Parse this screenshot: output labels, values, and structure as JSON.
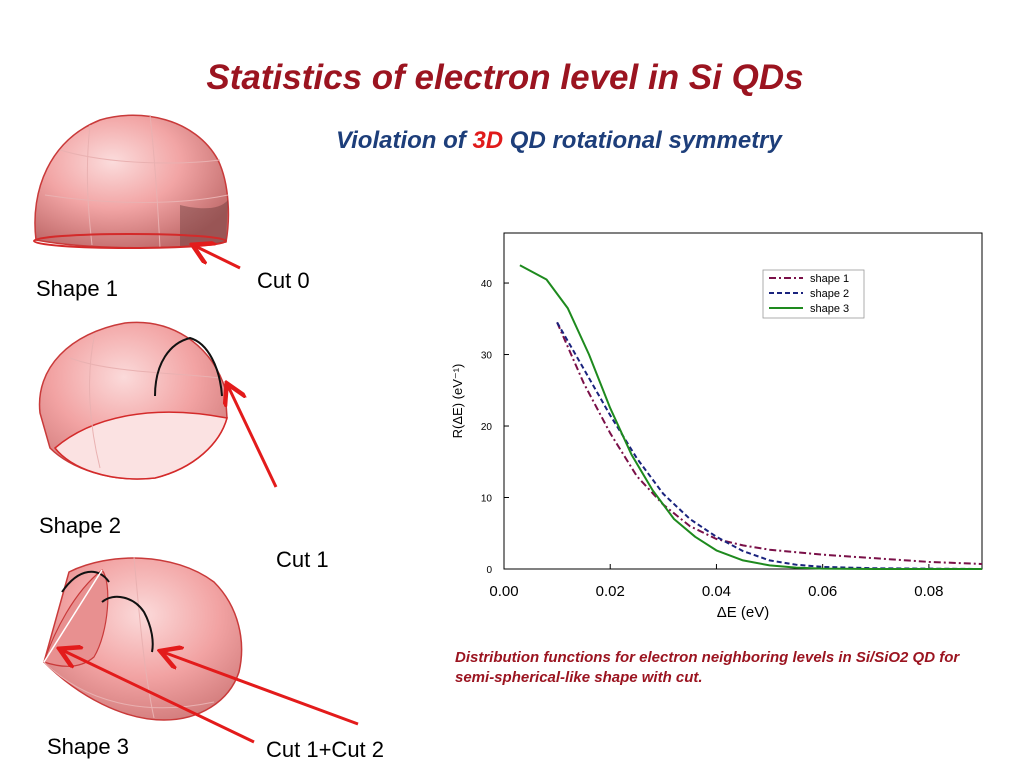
{
  "slide": {
    "title": "Statistics of electron level in Si QDs",
    "subtitle_pre": "Violation of ",
    "subtitle_emph": "3D",
    "subtitle_post": " QD rotational symmetry",
    "caption": "Distribution functions for electron neighboring levels in Si/SiO2 QD for semi-spherical-like shape with cut."
  },
  "shapes": [
    {
      "label": "Shape 1",
      "cut_label": "Cut 0"
    },
    {
      "label": "Shape 2",
      "cut_label": "Cut 1"
    },
    {
      "label": "Shape 3",
      "cut_label": "Cut 1+Cut 2"
    }
  ],
  "colors": {
    "title": "#9b1420",
    "subtitle": "#1d3e7a",
    "subtitle_emph": "#e01b1b",
    "arrow": "#e31b1b",
    "dome_fill": "#f0a3a3",
    "dome_edge": "#d42a2a"
  },
  "chart_data": {
    "type": "line",
    "xlabel": "ΔE (eV)",
    "ylabel": "R(ΔE) (eV⁻¹)",
    "xlim": [
      0.0,
      0.09
    ],
    "ylim": [
      0,
      47
    ],
    "xticks": [
      0.0,
      0.02,
      0.04,
      0.06,
      0.08
    ],
    "xtick_labels": [
      "0.00",
      "0.02",
      "0.04",
      "0.06",
      "0.08"
    ],
    "yticks": [
      0,
      10,
      20,
      30,
      40
    ],
    "ytick_labels": [
      "0",
      "10",
      "20",
      "30",
      "40"
    ],
    "grid": false,
    "legend_position": "top-right",
    "series": [
      {
        "name": "shape 1",
        "color": "#7a1048",
        "dash": "dashdot",
        "x": [
          0.01,
          0.015,
          0.02,
          0.025,
          0.03,
          0.035,
          0.04,
          0.045,
          0.05,
          0.06,
          0.07,
          0.08,
          0.09
        ],
        "y": [
          34.5,
          26,
          19,
          13,
          9,
          6,
          4.2,
          3.3,
          2.7,
          2,
          1.5,
          1,
          0.7
        ]
      },
      {
        "name": "shape 2",
        "color": "#1a237e",
        "dash": "dashed",
        "x": [
          0.01,
          0.015,
          0.02,
          0.025,
          0.03,
          0.035,
          0.04,
          0.045,
          0.05,
          0.055,
          0.06,
          0.07,
          0.09
        ],
        "y": [
          34.5,
          28,
          21.5,
          15.5,
          10.5,
          7,
          4.5,
          2.5,
          1.2,
          0.6,
          0.3,
          0.1,
          0
        ]
      },
      {
        "name": "shape 3",
        "color": "#1e8a1e",
        "dash": "solid",
        "x": [
          0.003,
          0.008,
          0.012,
          0.016,
          0.02,
          0.024,
          0.028,
          0.032,
          0.036,
          0.04,
          0.045,
          0.05,
          0.055,
          0.06,
          0.07,
          0.09
        ],
        "y": [
          42.5,
          40.5,
          36.5,
          30,
          22.5,
          16,
          11,
          7,
          4.5,
          2.6,
          1.2,
          0.5,
          0.2,
          0.05,
          0,
          0
        ]
      }
    ]
  }
}
